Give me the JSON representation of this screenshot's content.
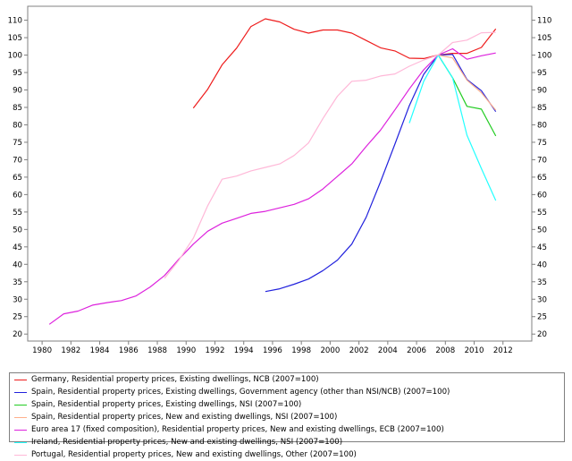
{
  "chart_data": {
    "type": "line",
    "title": "",
    "xlabel": "",
    "ylabel": "",
    "xlim": [
      1979,
      2014
    ],
    "ylim": [
      18,
      114
    ],
    "x_ticks": [
      1980,
      1982,
      1984,
      1986,
      1988,
      1990,
      1992,
      1994,
      1996,
      1998,
      2000,
      2002,
      2004,
      2006,
      2008,
      2010,
      2012
    ],
    "y_ticks": [
      20,
      25,
      30,
      35,
      40,
      45,
      50,
      55,
      60,
      65,
      70,
      75,
      80,
      85,
      90,
      95,
      100,
      105,
      110
    ],
    "x_tick_labels": [
      "1980",
      "1982",
      "1984",
      "1986",
      "1988",
      "1990",
      "1992",
      "1994",
      "1996",
      "1998",
      "2000",
      "2002",
      "2004",
      "2006",
      "2008",
      "2010",
      "2012"
    ],
    "y_tick_labels": [
      "20",
      "25",
      "30",
      "35",
      "40",
      "45",
      "50",
      "55",
      "60",
      "65",
      "70",
      "75",
      "80",
      "85",
      "90",
      "95",
      "100",
      "105",
      "110"
    ],
    "grid": false,
    "legend_position": "bottom",
    "series": [
      {
        "name": "Germany, Residential property prices, Existing dwellings, NCB (2007=100)",
        "color": "#ee1c1c",
        "points": [
          [
            1990.5,
            84.8
          ],
          [
            1991.5,
            90.2
          ],
          [
            1992.5,
            97.2
          ],
          [
            1993.5,
            102.0
          ],
          [
            1994.5,
            108.2
          ],
          [
            1995.5,
            110.4
          ],
          [
            1996.5,
            109.5
          ],
          [
            1997.5,
            107.4
          ],
          [
            1998.5,
            106.3
          ],
          [
            1999.5,
            107.2
          ],
          [
            2000.5,
            107.2
          ],
          [
            2001.5,
            106.3
          ],
          [
            2002.5,
            104.2
          ],
          [
            2003.5,
            102.1
          ],
          [
            2004.5,
            101.2
          ],
          [
            2005.5,
            99.1
          ],
          [
            2006.5,
            99.0
          ],
          [
            2007.5,
            100.0
          ],
          [
            2008.5,
            100.5
          ],
          [
            2009.5,
            100.5
          ],
          [
            2010.5,
            102.2
          ],
          [
            2011.5,
            107.5
          ]
        ]
      },
      {
        "name": "Spain, Residential property prices, Existing dwellings, Government agency (other than NSI/NCB) (2007=100)",
        "color": "#2222dd",
        "points": [
          [
            1995.5,
            32.2
          ],
          [
            1996.5,
            33.0
          ],
          [
            1997.5,
            34.3
          ],
          [
            1998.5,
            35.8
          ],
          [
            1999.5,
            38.2
          ],
          [
            2000.5,
            41.2
          ],
          [
            2001.5,
            45.8
          ],
          [
            2002.5,
            53.5
          ],
          [
            2003.5,
            63.7
          ],
          [
            2004.5,
            74.5
          ],
          [
            2005.5,
            85.5
          ],
          [
            2006.5,
            94.5
          ],
          [
            2007.5,
            100.0
          ],
          [
            2008.5,
            100.2
          ],
          [
            2009.5,
            93.0
          ],
          [
            2010.5,
            89.8
          ],
          [
            2011.5,
            83.8
          ]
        ]
      },
      {
        "name": "Spain, Residential property prices, Existing dwellings, NSI (2007=100)",
        "color": "#22cc22",
        "points": [
          [
            2007.5,
            100.0
          ],
          [
            2008.5,
            93.5
          ],
          [
            2009.5,
            85.3
          ],
          [
            2010.5,
            84.5
          ],
          [
            2011.5,
            76.8
          ]
        ]
      },
      {
        "name": "Spain, Residential property prices, New and existing dwellings, NSI (2007=100)",
        "color": "#ffb08c",
        "points": [
          [
            2007.5,
            100.0
          ],
          [
            2008.5,
            99.2
          ],
          [
            2009.5,
            92.8
          ],
          [
            2010.5,
            89.2
          ],
          [
            2011.5,
            84.2
          ]
        ]
      },
      {
        "name": "Euro area 17 (fixed composition), Residential property prices, New and existing dwellings, ECB (2007=100)",
        "color": "#dd22dd",
        "points": [
          [
            1980.5,
            22.8
          ],
          [
            1981.5,
            25.8
          ],
          [
            1982.5,
            26.6
          ],
          [
            1983.5,
            28.3
          ],
          [
            1984.5,
            29.0
          ],
          [
            1985.5,
            29.6
          ],
          [
            1986.5,
            30.9
          ],
          [
            1987.5,
            33.5
          ],
          [
            1988.5,
            36.8
          ],
          [
            1989.5,
            41.5
          ],
          [
            1990.5,
            45.8
          ],
          [
            1991.5,
            49.5
          ],
          [
            1992.5,
            51.8
          ],
          [
            1993.5,
            53.2
          ],
          [
            1994.5,
            54.6
          ],
          [
            1995.5,
            55.2
          ],
          [
            1996.5,
            56.2
          ],
          [
            1997.5,
            57.2
          ],
          [
            1998.5,
            58.8
          ],
          [
            1999.5,
            61.6
          ],
          [
            2000.5,
            65.2
          ],
          [
            2001.5,
            68.8
          ],
          [
            2002.5,
            73.8
          ],
          [
            2003.5,
            78.5
          ],
          [
            2004.5,
            84.3
          ],
          [
            2005.5,
            90.3
          ],
          [
            2006.5,
            95.8
          ],
          [
            2007.5,
            100.0
          ],
          [
            2008.5,
            101.8
          ],
          [
            2009.5,
            98.8
          ],
          [
            2010.5,
            99.8
          ],
          [
            2011.5,
            100.6
          ]
        ]
      },
      {
        "name": "Ireland, Residential property prices, New and existing dwellings, NSI (2007=100)",
        "color": "#22ffff",
        "points": [
          [
            2005.5,
            80.5
          ],
          [
            2006.5,
            92.5
          ],
          [
            2007.5,
            100.0
          ],
          [
            2008.5,
            93.5
          ],
          [
            2009.5,
            77.0
          ],
          [
            2010.5,
            67.5
          ],
          [
            2011.5,
            58.3
          ]
        ]
      },
      {
        "name": "Portugal, Residential property prices, New and existing dwellings, Other (2007=100)",
        "color": "#ffb8d8",
        "points": [
          [
            1988.5,
            36.0
          ],
          [
            1989.5,
            41.2
          ],
          [
            1990.5,
            47.5
          ],
          [
            1991.5,
            56.8
          ],
          [
            1992.5,
            64.4
          ],
          [
            1993.5,
            65.3
          ],
          [
            1994.5,
            66.8
          ],
          [
            1995.5,
            67.8
          ],
          [
            1996.5,
            68.8
          ],
          [
            1997.5,
            71.2
          ],
          [
            1998.5,
            74.8
          ],
          [
            1999.5,
            81.8
          ],
          [
            2000.5,
            88.2
          ],
          [
            2001.5,
            92.5
          ],
          [
            2002.5,
            92.8
          ],
          [
            2003.5,
            94.0
          ],
          [
            2004.5,
            94.6
          ],
          [
            2005.5,
            96.8
          ],
          [
            2006.5,
            98.6
          ],
          [
            2007.5,
            100.0
          ],
          [
            2008.5,
            103.6
          ],
          [
            2009.5,
            104.3
          ],
          [
            2010.5,
            106.4
          ],
          [
            2011.5,
            106.5
          ]
        ]
      }
    ]
  },
  "legend": {
    "items": [
      {
        "label": "Germany, Residential property prices, Existing dwellings, NCB (2007=100)",
        "color": "#ee1c1c"
      },
      {
        "label": "Spain, Residential property prices, Existing dwellings, Government agency (other than NSI/NCB) (2007=100)",
        "color": "#2222dd"
      },
      {
        "label": "Spain, Residential property prices, Existing dwellings, NSI (2007=100)",
        "color": "#22cc22"
      },
      {
        "label": "Spain, Residential property prices, New and existing dwellings, NSI (2007=100)",
        "color": "#ffb08c"
      },
      {
        "label": "Euro area 17 (fixed composition), Residential property prices, New and existing dwellings, ECB (2007=100)",
        "color": "#dd22dd"
      },
      {
        "label": "Ireland, Residential property prices, New and existing dwellings, NSI (2007=100)",
        "color": "#22ffff"
      },
      {
        "label": "Portugal, Residential property prices, New and existing dwellings, Other (2007=100)",
        "color": "#ffb8d8"
      }
    ]
  }
}
